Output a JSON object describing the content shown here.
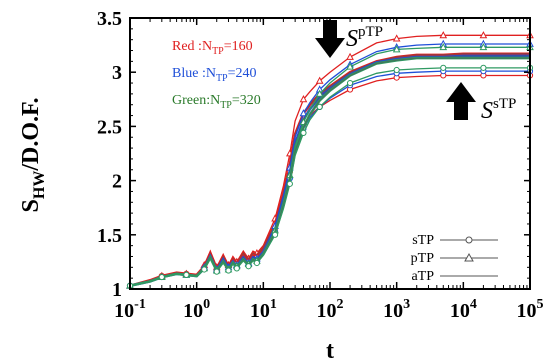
{
  "chart_data": {
    "type": "line",
    "xscale": "log",
    "xlim": [
      0.1,
      100000
    ],
    "ylim": [
      1,
      3.5
    ],
    "xlabel": "t",
    "ylabel_main": "S",
    "ylabel_sub": "HW",
    "ylabel_rest": "/D.O.F.",
    "xticks": [
      {
        "base": "10",
        "exp": "-1",
        "value": 0.1
      },
      {
        "base": "10",
        "exp": "0",
        "value": 1
      },
      {
        "base": "10",
        "exp": "1",
        "value": 10
      },
      {
        "base": "10",
        "exp": "2",
        "value": 100
      },
      {
        "base": "10",
        "exp": "3",
        "value": 1000
      },
      {
        "base": "10",
        "exp": "4",
        "value": 10000
      },
      {
        "base": "10",
        "exp": "5",
        "value": 100000
      }
    ],
    "yticks": [
      {
        "label": "1",
        "value": 1
      },
      {
        "label": "1.5",
        "value": 1.5
      },
      {
        "label": "2",
        "value": 2
      },
      {
        "label": "2.5",
        "value": 2.5
      },
      {
        "label": "3",
        "value": 3
      },
      {
        "label": "3.5",
        "value": 3.5
      }
    ],
    "x": [
      0.1,
      0.2,
      0.3,
      0.5,
      0.7,
      1,
      1.3,
      1.6,
      2,
      2.5,
      3,
      3.5,
      4,
      5,
      6,
      7,
      8,
      10,
      15,
      20,
      25,
      30,
      40,
      50,
      70,
      100,
      200,
      500,
      1000,
      2000,
      5000,
      10000,
      20000,
      50000,
      100000
    ],
    "series": [
      {
        "group": "Red",
        "type": "pTP",
        "color": "#e02020",
        "marker": "triangle",
        "values": [
          1.03,
          1.08,
          1.12,
          1.15,
          1.14,
          1.13,
          1.22,
          1.35,
          1.2,
          1.32,
          1.22,
          1.3,
          1.25,
          1.35,
          1.28,
          1.35,
          1.33,
          1.4,
          1.65,
          1.95,
          2.25,
          2.55,
          2.75,
          2.82,
          2.92,
          3.0,
          3.14,
          3.27,
          3.31,
          3.33,
          3.34,
          3.34,
          3.34,
          3.34,
          3.34
        ]
      },
      {
        "group": "Red",
        "type": "aTP",
        "color": "#e02020",
        "marker": "none",
        "values": [
          1.03,
          1.08,
          1.12,
          1.15,
          1.14,
          1.13,
          1.21,
          1.33,
          1.19,
          1.3,
          1.21,
          1.28,
          1.24,
          1.33,
          1.27,
          1.33,
          1.31,
          1.38,
          1.6,
          1.88,
          2.15,
          2.43,
          2.62,
          2.7,
          2.8,
          2.87,
          3.0,
          3.1,
          3.14,
          3.16,
          3.16,
          3.17,
          3.17,
          3.17,
          3.17
        ]
      },
      {
        "group": "Red",
        "type": "sTP",
        "color": "#e02020",
        "marker": "circle",
        "values": [
          1.03,
          1.08,
          1.12,
          1.15,
          1.14,
          1.13,
          1.2,
          1.32,
          1.18,
          1.28,
          1.2,
          1.27,
          1.23,
          1.31,
          1.25,
          1.31,
          1.29,
          1.36,
          1.56,
          1.82,
          2.08,
          2.35,
          2.52,
          2.6,
          2.68,
          2.74,
          2.84,
          2.92,
          2.95,
          2.96,
          2.97,
          2.97,
          2.97,
          2.97,
          2.97
        ]
      },
      {
        "group": "Blue",
        "type": "pTP",
        "color": "#1f4fd8",
        "marker": "triangle",
        "values": [
          1.03,
          1.07,
          1.11,
          1.14,
          1.13,
          1.12,
          1.2,
          1.31,
          1.18,
          1.28,
          1.2,
          1.26,
          1.22,
          1.3,
          1.24,
          1.3,
          1.28,
          1.35,
          1.58,
          1.86,
          2.12,
          2.4,
          2.62,
          2.72,
          2.84,
          2.93,
          3.07,
          3.19,
          3.23,
          3.25,
          3.26,
          3.26,
          3.26,
          3.26,
          3.26
        ]
      },
      {
        "group": "Blue",
        "type": "aTP",
        "color": "#1f4fd8",
        "marker": "none",
        "values": [
          1.03,
          1.07,
          1.11,
          1.14,
          1.13,
          1.12,
          1.19,
          1.3,
          1.17,
          1.27,
          1.19,
          1.25,
          1.21,
          1.29,
          1.23,
          1.29,
          1.27,
          1.34,
          1.55,
          1.82,
          2.07,
          2.34,
          2.56,
          2.66,
          2.77,
          2.85,
          2.98,
          3.09,
          3.12,
          3.14,
          3.14,
          3.15,
          3.15,
          3.15,
          3.15
        ]
      },
      {
        "group": "Blue",
        "type": "sTP",
        "color": "#1f4fd8",
        "marker": "circle",
        "values": [
          1.03,
          1.07,
          1.11,
          1.14,
          1.13,
          1.12,
          1.19,
          1.29,
          1.17,
          1.26,
          1.19,
          1.24,
          1.21,
          1.28,
          1.22,
          1.28,
          1.26,
          1.33,
          1.53,
          1.78,
          2.02,
          2.28,
          2.48,
          2.58,
          2.68,
          2.76,
          2.88,
          2.96,
          2.99,
          3.0,
          3.01,
          3.01,
          3.01,
          3.01,
          3.01
        ]
      },
      {
        "group": "Green",
        "type": "pTP",
        "color": "#2f9a62",
        "marker": "triangle",
        "values": [
          1.03,
          1.07,
          1.11,
          1.14,
          1.13,
          1.12,
          1.19,
          1.3,
          1.17,
          1.26,
          1.18,
          1.25,
          1.21,
          1.28,
          1.23,
          1.28,
          1.26,
          1.33,
          1.54,
          1.8,
          2.05,
          2.32,
          2.54,
          2.66,
          2.8,
          2.9,
          3.05,
          3.17,
          3.21,
          3.22,
          3.23,
          3.23,
          3.23,
          3.23,
          3.23
        ]
      },
      {
        "group": "Green",
        "type": "aTP",
        "color": "#2f9a62",
        "marker": "none",
        "values": [
          1.03,
          1.07,
          1.11,
          1.14,
          1.13,
          1.12,
          1.19,
          1.29,
          1.17,
          1.25,
          1.18,
          1.24,
          1.2,
          1.27,
          1.22,
          1.27,
          1.25,
          1.32,
          1.52,
          1.77,
          2.01,
          2.27,
          2.49,
          2.61,
          2.74,
          2.83,
          2.97,
          3.08,
          3.11,
          3.13,
          3.13,
          3.13,
          3.13,
          3.13,
          3.13
        ]
      },
      {
        "group": "Green",
        "type": "sTP",
        "color": "#2f9a62",
        "marker": "circle",
        "values": [
          1.03,
          1.07,
          1.11,
          1.14,
          1.13,
          1.12,
          1.18,
          1.28,
          1.16,
          1.24,
          1.17,
          1.23,
          1.19,
          1.26,
          1.21,
          1.26,
          1.24,
          1.31,
          1.5,
          1.74,
          1.97,
          2.23,
          2.44,
          2.56,
          2.68,
          2.77,
          2.9,
          2.99,
          3.02,
          3.03,
          3.04,
          3.04,
          3.04,
          3.04,
          3.04
        ]
      }
    ],
    "annotations": {
      "red": {
        "prefix": "Red :N",
        "sub": "TP",
        "suffix": "=160",
        "color": "#e02020"
      },
      "blue": {
        "prefix": "Blue :N",
        "sub": "TP",
        "suffix": "=240",
        "color": "#1f4fd8"
      },
      "green": {
        "prefix": "Green:N",
        "sub": "TP",
        "suffix": "=320",
        "color": "#2a7a2a"
      },
      "ptp_label_main": "S",
      "ptp_label_sup": "pTP",
      "stp_label_main": "S",
      "stp_label_sup": "sTP"
    },
    "legend": {
      "position": "bottom-right",
      "entries": [
        {
          "label": "sTP",
          "marker": "circle"
        },
        {
          "label": "pTP",
          "marker": "triangle"
        },
        {
          "label": "aTP",
          "marker": "none"
        }
      ]
    }
  }
}
